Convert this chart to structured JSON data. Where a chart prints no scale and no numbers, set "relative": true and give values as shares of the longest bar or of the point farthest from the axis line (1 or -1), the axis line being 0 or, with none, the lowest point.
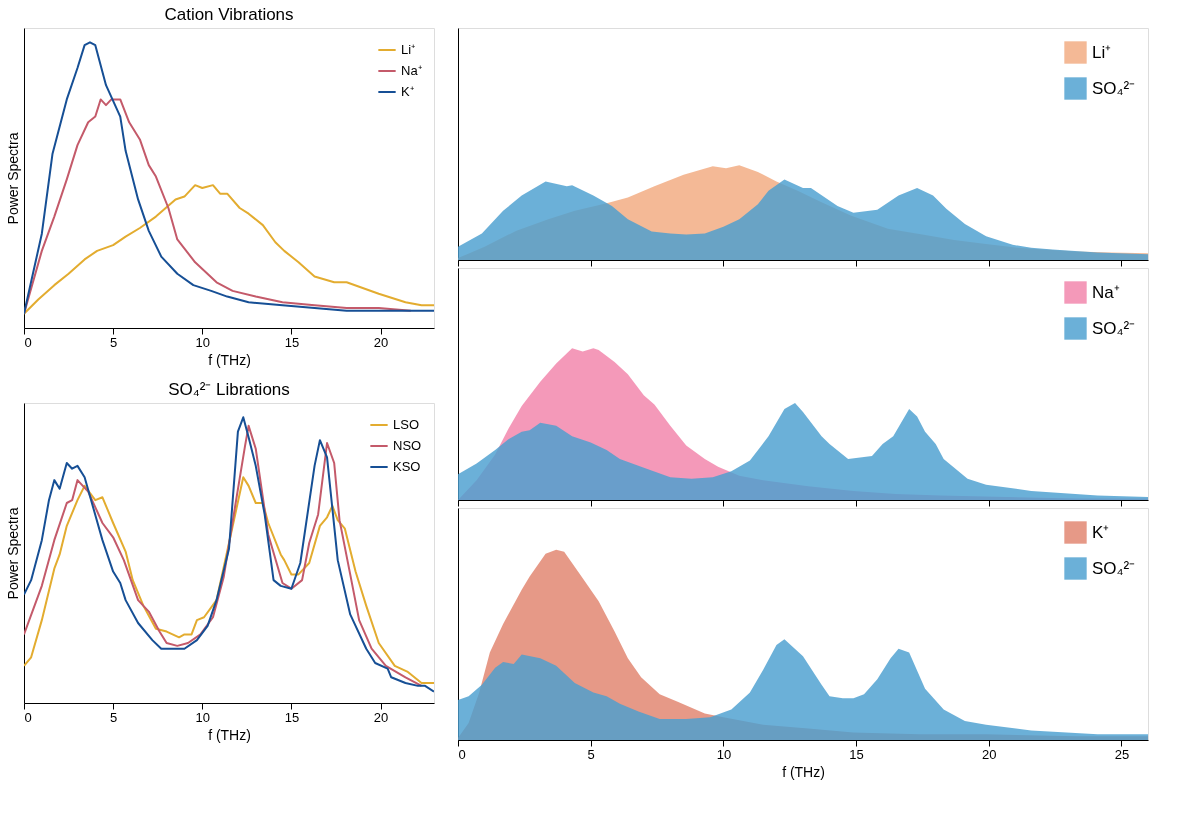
{
  "chart_data": [
    {
      "type": "line",
      "title": "Cation Vibrations",
      "xlabel": "f (THz)",
      "ylabel": "Power Spectra",
      "relative": true,
      "xlim": [
        0,
        23
      ],
      "xticks": [
        0,
        5,
        10,
        15,
        20
      ],
      "legend": "top right",
      "series": [
        {
          "name": "Li⁺",
          "color": "#e3ac2f",
          "x": [
            0,
            0.8,
            1.7,
            2.5,
            3.4,
            4.1,
            5.0,
            5.7,
            6.5,
            7.4,
            8.5,
            9.0,
            9.6,
            10.0,
            10.6,
            11.0,
            11.4,
            12.1,
            12.6,
            13.4,
            14.1,
            14.6,
            15.4,
            16.3,
            17.4,
            18.1,
            19.9,
            21.4,
            22.3,
            23.0
          ],
          "values": [
            0.05,
            0.1,
            0.15,
            0.19,
            0.24,
            0.27,
            0.29,
            0.32,
            0.35,
            0.39,
            0.45,
            0.46,
            0.5,
            0.49,
            0.5,
            0.47,
            0.47,
            0.42,
            0.4,
            0.36,
            0.3,
            0.27,
            0.23,
            0.18,
            0.16,
            0.16,
            0.12,
            0.09,
            0.08,
            0.08
          ]
        },
        {
          "name": "Na⁺",
          "color": "#c45a6a",
          "x": [
            0,
            1.0,
            1.7,
            2.4,
            3.0,
            3.6,
            4.0,
            4.3,
            4.6,
            4.9,
            5.4,
            5.9,
            6.5,
            7.0,
            7.4,
            8.1,
            8.6,
            9.6,
            10.8,
            11.7,
            13.0,
            14.5,
            16.3,
            18.1,
            19.9,
            21.7
          ],
          "values": [
            0.05,
            0.27,
            0.39,
            0.52,
            0.64,
            0.72,
            0.74,
            0.8,
            0.78,
            0.8,
            0.8,
            0.72,
            0.66,
            0.57,
            0.53,
            0.42,
            0.31,
            0.23,
            0.16,
            0.13,
            0.11,
            0.09,
            0.08,
            0.07,
            0.07,
            0.06
          ]
        },
        {
          "name": "K⁺",
          "color": "#164f95",
          "x": [
            0,
            1.0,
            1.6,
            2.4,
            3.0,
            3.4,
            3.7,
            4.0,
            4.6,
            5.4,
            5.7,
            6.4,
            7.0,
            7.7,
            8.6,
            9.5,
            10.5,
            11.4,
            12.6,
            14.5,
            16.3,
            18.1,
            20.8,
            23.0
          ],
          "values": [
            0.05,
            0.33,
            0.61,
            0.8,
            0.91,
            0.99,
            1.0,
            0.99,
            0.85,
            0.74,
            0.62,
            0.45,
            0.34,
            0.25,
            0.19,
            0.15,
            0.13,
            0.11,
            0.09,
            0.08,
            0.07,
            0.06,
            0.06,
            0.06
          ]
        }
      ]
    },
    {
      "type": "line",
      "title": "SO₄²⁻ Librations",
      "xlabel": "f (THz)",
      "ylabel": "Power Spectra",
      "relative": true,
      "xlim": [
        0,
        23
      ],
      "xticks": [
        0,
        5,
        10,
        15,
        20
      ],
      "legend": "top right",
      "series": [
        {
          "name": "LSO",
          "color": "#e3ac2f",
          "x": [
            0,
            0.4,
            1.0,
            1.7,
            2.0,
            2.4,
            3.0,
            3.4,
            4.0,
            4.4,
            5.0,
            5.7,
            6.1,
            6.7,
            7.4,
            8.0,
            8.7,
            9.0,
            9.4,
            9.7,
            10.1,
            10.8,
            11.5,
            12.3,
            12.6,
            13.0,
            13.4,
            13.7,
            14.4,
            14.6,
            15.0,
            15.4,
            16.0,
            16.6,
            17.0,
            17.3,
            17.6,
            18.0,
            18.6,
            19.2,
            19.9,
            20.8,
            21.5,
            22.3,
            23.0
          ],
          "values": [
            0.13,
            0.16,
            0.29,
            0.47,
            0.52,
            0.62,
            0.71,
            0.76,
            0.71,
            0.72,
            0.63,
            0.53,
            0.43,
            0.34,
            0.26,
            0.25,
            0.23,
            0.24,
            0.24,
            0.29,
            0.3,
            0.36,
            0.56,
            0.79,
            0.76,
            0.7,
            0.7,
            0.63,
            0.52,
            0.5,
            0.45,
            0.45,
            0.49,
            0.62,
            0.65,
            0.69,
            0.64,
            0.61,
            0.46,
            0.34,
            0.21,
            0.13,
            0.11,
            0.07,
            0.07
          ]
        },
        {
          "name": "NSO",
          "color": "#c45a6a",
          "x": [
            0,
            1.0,
            1.7,
            2.4,
            2.7,
            3.0,
            3.6,
            4.4,
            5.0,
            5.6,
            6.0,
            6.4,
            7.0,
            7.6,
            8.0,
            8.6,
            9.2,
            9.9,
            10.6,
            11.2,
            11.9,
            12.4,
            12.6,
            13.0,
            13.7,
            14.5,
            15.0,
            15.6,
            16.0,
            16.5,
            17.0,
            17.4,
            17.7,
            18.3,
            18.8,
            19.5,
            20.3,
            21.4,
            22.3
          ],
          "values": [
            0.24,
            0.41,
            0.57,
            0.7,
            0.71,
            0.78,
            0.74,
            0.63,
            0.58,
            0.5,
            0.43,
            0.36,
            0.32,
            0.25,
            0.21,
            0.2,
            0.21,
            0.24,
            0.3,
            0.44,
            0.71,
            0.9,
            0.97,
            0.89,
            0.59,
            0.42,
            0.4,
            0.43,
            0.56,
            0.66,
            0.91,
            0.84,
            0.64,
            0.45,
            0.29,
            0.19,
            0.13,
            0.09,
            0.06
          ]
        },
        {
          "name": "KSO",
          "color": "#164f95",
          "x": [
            0,
            0.4,
            1.0,
            1.4,
            1.7,
            2.0,
            2.4,
            2.7,
            3.0,
            3.4,
            3.9,
            4.4,
            5.0,
            5.4,
            5.7,
            6.4,
            7.2,
            7.7,
            9.0,
            9.7,
            10.3,
            10.8,
            11.5,
            12.0,
            12.3,
            12.6,
            13.0,
            13.5,
            14.0,
            14.4,
            15.0,
            15.5,
            16.3,
            16.6,
            17.0,
            17.6,
            18.3,
            19.2,
            19.7,
            20.4,
            20.6,
            21.4,
            22.1,
            22.5,
            23.0
          ],
          "values": [
            0.38,
            0.43,
            0.57,
            0.71,
            0.78,
            0.75,
            0.84,
            0.82,
            0.83,
            0.79,
            0.68,
            0.57,
            0.46,
            0.42,
            0.36,
            0.28,
            0.22,
            0.19,
            0.19,
            0.22,
            0.27,
            0.36,
            0.54,
            0.95,
            1.0,
            0.93,
            0.83,
            0.66,
            0.43,
            0.41,
            0.4,
            0.49,
            0.83,
            0.92,
            0.86,
            0.5,
            0.31,
            0.19,
            0.14,
            0.12,
            0.09,
            0.07,
            0.06,
            0.06,
            0.04
          ]
        }
      ]
    },
    {
      "type": "area",
      "relative": true,
      "xlim": [
        0,
        26
      ],
      "xticks": [
        0,
        5,
        10,
        15,
        20,
        25
      ],
      "tick_labels": false,
      "legend": "top right",
      "series": [
        {
          "name": "Li⁺",
          "color": "#f2a97f",
          "x": [
            0,
            1.0,
            2.2,
            3.4,
            4.4,
            5.6,
            6.4,
            7.4,
            8.5,
            9.6,
            10.1,
            10.6,
            11.3,
            12.0,
            12.8,
            13.7,
            14.8,
            16.2,
            17.5,
            18.7,
            19.9,
            21.1,
            22.1,
            23.3,
            24.6,
            26.0
          ],
          "values": [
            0.02,
            0.14,
            0.31,
            0.43,
            0.52,
            0.6,
            0.66,
            0.78,
            0.9,
            0.99,
            0.97,
            1.0,
            0.93,
            0.83,
            0.73,
            0.61,
            0.47,
            0.33,
            0.27,
            0.21,
            0.17,
            0.13,
            0.11,
            0.09,
            0.08,
            0.07
          ]
        },
        {
          "name": "SO₄²⁻",
          "color": "#4a9fd0",
          "x": [
            0,
            0.9,
            1.7,
            2.4,
            3.3,
            4.1,
            4.3,
            5.1,
            5.8,
            6.4,
            7.3,
            8.0,
            8.6,
            9.3,
            10.0,
            10.6,
            11.3,
            11.7,
            12.3,
            13.0,
            13.3,
            14.3,
            14.9,
            15.8,
            16.6,
            17.3,
            17.9,
            18.4,
            19.1,
            19.9,
            20.9,
            21.6,
            22.4,
            24.1,
            26.0
          ],
          "values": [
            0.14,
            0.28,
            0.52,
            0.68,
            0.83,
            0.78,
            0.79,
            0.68,
            0.57,
            0.43,
            0.3,
            0.28,
            0.27,
            0.28,
            0.35,
            0.43,
            0.59,
            0.73,
            0.85,
            0.76,
            0.76,
            0.57,
            0.5,
            0.53,
            0.68,
            0.76,
            0.68,
            0.54,
            0.38,
            0.25,
            0.16,
            0.13,
            0.11,
            0.08,
            0.06
          ]
        }
      ]
    },
    {
      "type": "area",
      "relative": true,
      "xlim": [
        0,
        26
      ],
      "xticks": [
        0,
        5,
        10,
        15,
        20,
        25
      ],
      "tick_labels": false,
      "legend": "top right",
      "series": [
        {
          "name": "Na⁺",
          "color": "#f283aa",
          "x": [
            0,
            0.7,
            1.4,
            1.9,
            2.4,
            3.1,
            3.7,
            4.3,
            4.7,
            5.1,
            5.3,
            5.9,
            6.4,
            7.0,
            7.4,
            8.0,
            8.6,
            9.3,
            9.8,
            10.6,
            11.5,
            13.2,
            14.9,
            16.5,
            18.2,
            20.7,
            23.3,
            26.0
          ],
          "values": [
            0,
            0.13,
            0.3,
            0.47,
            0.62,
            0.78,
            0.9,
            1.0,
            0.98,
            1.0,
            0.99,
            0.91,
            0.83,
            0.69,
            0.63,
            0.49,
            0.36,
            0.27,
            0.22,
            0.16,
            0.13,
            0.09,
            0.06,
            0.04,
            0.03,
            0.02,
            0.01,
            0.01
          ]
        },
        {
          "name": "SO₄²⁻",
          "color": "#4a9fd0",
          "x": [
            0,
            0.7,
            1.4,
            1.9,
            2.4,
            2.7,
            3.1,
            3.7,
            4.3,
            5.0,
            5.6,
            6.1,
            6.9,
            8.0,
            8.8,
            9.6,
            10.3,
            11.0,
            11.7,
            12.3,
            12.7,
            13.0,
            13.7,
            14.0,
            14.7,
            15.6,
            16.0,
            16.4,
            17.0,
            17.3,
            17.6,
            18.0,
            18.3,
            19.2,
            19.9,
            21.6,
            24.1,
            26.0
          ],
          "values": [
            0.17,
            0.24,
            0.33,
            0.4,
            0.45,
            0.46,
            0.51,
            0.49,
            0.42,
            0.38,
            0.33,
            0.27,
            0.22,
            0.15,
            0.14,
            0.15,
            0.19,
            0.26,
            0.42,
            0.6,
            0.64,
            0.58,
            0.42,
            0.37,
            0.27,
            0.29,
            0.37,
            0.42,
            0.6,
            0.55,
            0.45,
            0.37,
            0.27,
            0.14,
            0.1,
            0.06,
            0.03,
            0.02
          ]
        }
      ]
    },
    {
      "type": "area",
      "xlabel": "f (THz)",
      "relative": true,
      "xlim": [
        0,
        26
      ],
      "xticks": [
        0,
        5,
        10,
        15,
        20,
        25
      ],
      "tick_labels": "x",
      "legend": "top right",
      "series": [
        {
          "name": "K⁺",
          "color": "#e0826c",
          "x": [
            0,
            0.4,
            0.8,
            1.2,
            1.7,
            2.4,
            2.7,
            3.3,
            3.7,
            4.0,
            4.7,
            5.3,
            5.9,
            6.4,
            6.9,
            7.6,
            8.3,
            9.3,
            10.0,
            11.5,
            13.2,
            14.9,
            17.4,
            19.9,
            23.3,
            26.0
          ],
          "values": [
            0.01,
            0.09,
            0.25,
            0.46,
            0.61,
            0.79,
            0.86,
            0.98,
            1.0,
            0.99,
            0.85,
            0.73,
            0.57,
            0.43,
            0.33,
            0.24,
            0.2,
            0.14,
            0.12,
            0.08,
            0.06,
            0.04,
            0.03,
            0.03,
            0.02,
            0.02
          ]
        },
        {
          "name": "SO₄²⁻",
          "color": "#4a9fd0",
          "x": [
            0,
            0.4,
            0.9,
            1.4,
            1.7,
            2.1,
            2.4,
            3.1,
            3.7,
            4.4,
            5.1,
            5.6,
            6.1,
            6.8,
            7.6,
            8.6,
            9.5,
            10.3,
            11.0,
            11.5,
            12.0,
            12.3,
            13.0,
            13.7,
            14.0,
            14.5,
            14.9,
            15.3,
            15.8,
            16.3,
            16.6,
            17.0,
            17.6,
            18.3,
            19.1,
            19.9,
            21.6,
            24.1,
            26.0
          ],
          "values": [
            0.21,
            0.23,
            0.29,
            0.38,
            0.41,
            0.4,
            0.45,
            0.43,
            0.39,
            0.3,
            0.25,
            0.23,
            0.19,
            0.15,
            0.11,
            0.11,
            0.12,
            0.16,
            0.25,
            0.37,
            0.5,
            0.53,
            0.44,
            0.29,
            0.23,
            0.22,
            0.22,
            0.24,
            0.32,
            0.43,
            0.48,
            0.46,
            0.27,
            0.16,
            0.1,
            0.08,
            0.05,
            0.03,
            0.03
          ]
        }
      ]
    }
  ]
}
